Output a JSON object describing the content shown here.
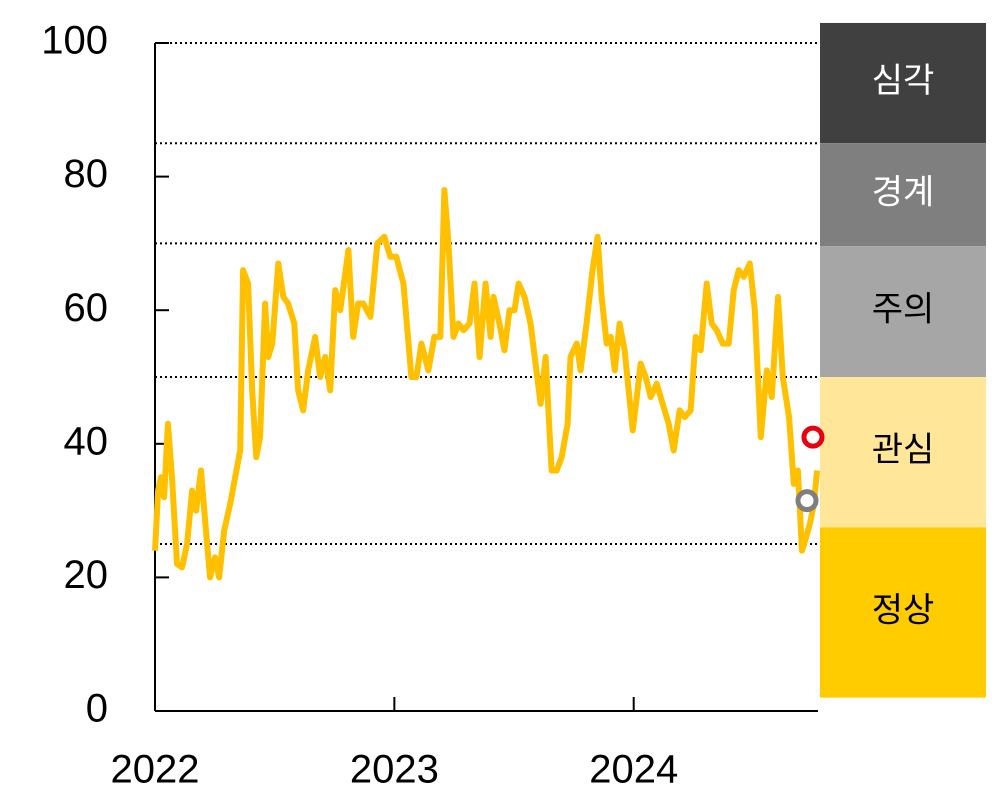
{
  "chart_data": {
    "type": "line",
    "x": [
      2022.0,
      2022.013,
      2022.025,
      2022.038,
      2022.054,
      2022.071,
      2022.092,
      2022.113,
      2022.134,
      2022.155,
      2022.172,
      2022.192,
      2022.213,
      2022.23,
      2022.251,
      2022.268,
      2022.289,
      2022.314,
      2022.335,
      2022.356,
      2022.368,
      2022.389,
      2022.406,
      2022.423,
      2022.439,
      2022.46,
      2022.473,
      2022.49,
      2022.515,
      2022.536,
      2022.556,
      2022.582,
      2022.598,
      2022.619,
      2022.64,
      2022.669,
      2022.69,
      2022.711,
      2022.732,
      2022.753,
      2022.774,
      2022.808,
      2022.828,
      2022.849,
      2022.87,
      2022.9,
      2022.929,
      2022.958,
      2022.983,
      2023.008,
      2023.038,
      2023.071,
      2023.092,
      2023.113,
      2023.142,
      2023.167,
      2023.192,
      2023.209,
      2023.226,
      2023.247,
      2023.268,
      2023.289,
      2023.314,
      2023.335,
      2023.356,
      2023.381,
      2023.402,
      2023.414,
      2023.439,
      2023.46,
      2023.481,
      2023.502,
      2023.519,
      2023.544,
      2023.569,
      2023.59,
      2023.611,
      2023.632,
      2023.657,
      2023.678,
      2023.699,
      2023.724,
      2023.736,
      2023.762,
      2023.778,
      2023.803,
      2023.828,
      2023.849,
      2023.866,
      2023.887,
      2023.904,
      2023.921,
      2023.941,
      2023.962,
      2023.979,
      2023.996,
      2024.013,
      2024.029,
      2024.05,
      2024.071,
      2024.096,
      2024.121,
      2024.146,
      2024.167,
      2024.192,
      2024.213,
      2024.238,
      2024.259,
      2024.28,
      2024.305,
      2024.326,
      2024.347,
      2024.372,
      2024.397,
      2024.418,
      2024.439,
      2024.46,
      2024.485,
      2024.506,
      2024.531,
      2024.556,
      2024.577,
      2024.603,
      2024.623,
      2024.649,
      2024.669,
      2024.686,
      2024.703,
      2024.72,
      2024.736,
      2024.753,
      2024.766
    ],
    "series": [
      {
        "color": "#ffc000",
        "values": [
          24,
          33,
          35,
          32,
          43,
          35,
          22,
          21.5,
          25,
          33,
          30,
          36,
          27,
          20,
          23,
          20,
          27,
          31,
          35,
          39,
          66,
          64,
          48,
          38,
          41,
          61,
          53,
          55,
          67,
          62,
          61,
          58,
          48,
          45,
          51,
          56,
          50,
          53,
          48,
          63,
          60,
          69,
          56,
          61,
          61,
          59,
          70,
          71,
          68,
          68,
          64,
          50,
          50,
          55,
          51,
          56,
          56,
          78,
          70,
          56,
          58,
          57,
          58,
          64,
          53,
          64,
          56,
          62,
          58,
          54,
          60,
          60,
          64,
          62,
          58,
          52,
          46,
          53,
          36,
          36,
          38,
          43,
          53,
          55,
          51,
          58,
          66,
          71,
          62,
          55,
          56,
          51,
          58,
          54,
          48,
          42,
          47,
          52,
          50,
          47,
          49,
          46,
          43,
          39,
          45,
          44,
          45,
          56,
          54,
          64,
          58,
          57,
          55,
          55,
          63,
          66,
          65,
          67,
          60,
          41,
          51,
          47,
          62,
          50,
          44,
          34,
          36,
          24,
          26,
          28,
          31,
          36
        ]
      }
    ],
    "markers": [
      {
        "x": 2024.749,
        "value": 41,
        "color": "#e60012"
      },
      {
        "x": 2024.724,
        "value": 31.5,
        "color": "#7f7f7f"
      }
    ],
    "xlim": [
      2022,
      2024.77
    ],
    "xticks": [
      2022,
      2023,
      2024
    ],
    "ylim": [
      0,
      100
    ],
    "yticks": [
      0,
      20,
      40,
      60,
      80,
      100
    ],
    "reference_lines": [
      25,
      50,
      70,
      85,
      100
    ],
    "bands": [
      {
        "label": "심각",
        "from": 85,
        "to": 103,
        "color": "#404040",
        "text_color": "#ffffff"
      },
      {
        "label": "경계",
        "from": 69.6,
        "to": 85,
        "color": "#7f7f7f",
        "text_color": "#ffffff"
      },
      {
        "label": "주의",
        "from": 50,
        "to": 69.6,
        "color": "#a6a6a6",
        "text_color": "#000000"
      },
      {
        "label": "관심",
        "from": 27.5,
        "to": 50,
        "color": "#ffe699",
        "text_color": "#000000"
      },
      {
        "label": "정상",
        "from": 2,
        "to": 27.5,
        "color": "#ffcc00",
        "text_color": "#000000"
      }
    ]
  }
}
